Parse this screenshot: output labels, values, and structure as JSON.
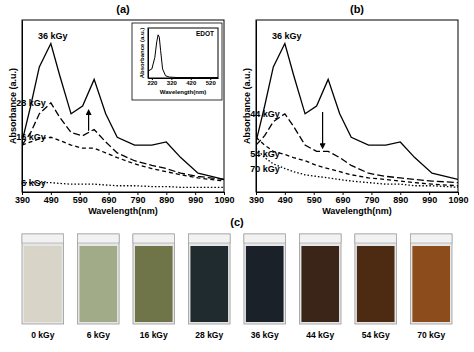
{
  "chart_data": [
    {
      "type": "line",
      "title": "(a)",
      "x_label": "Wavelength(nm)",
      "y_label": "Absorbance (a.u.)",
      "x": [
        390,
        420,
        450,
        490,
        520,
        560,
        600,
        640,
        680,
        720,
        780,
        840,
        890,
        940,
        1000,
        1090
      ],
      "xlim": [
        390,
        1090
      ],
      "xticks": [
        390,
        490,
        590,
        690,
        790,
        890,
        990,
        1090
      ],
      "ylim": [
        0,
        1.1
      ],
      "tick_labels": "x",
      "series": [
        {
          "name": "36 kGy",
          "color": "#000000",
          "line_style": "solid",
          "values": [
            0.32,
            0.55,
            0.8,
            0.95,
            0.75,
            0.5,
            0.55,
            0.72,
            0.5,
            0.35,
            0.3,
            0.3,
            0.32,
            0.22,
            0.12,
            0.08
          ]
        },
        {
          "name": "28 kGy",
          "color": "#000000",
          "line_style": "longdash",
          "values": [
            0.3,
            0.38,
            0.5,
            0.57,
            0.48,
            0.38,
            0.36,
            0.4,
            0.32,
            0.25,
            0.2,
            0.17,
            0.15,
            0.12,
            0.1,
            0.08
          ]
        },
        {
          "name": "16 kGy",
          "color": "#000000",
          "line_style": "dashed",
          "values": [
            0.3,
            0.32,
            0.34,
            0.35,
            0.33,
            0.3,
            0.28,
            0.28,
            0.25,
            0.22,
            0.18,
            0.15,
            0.13,
            0.11,
            0.09,
            0.07
          ]
        },
        {
          "name": "6 kGy",
          "color": "#000000",
          "line_style": "dotted",
          "values": [
            0.06,
            0.06,
            0.06,
            0.06,
            0.055,
            0.05,
            0.05,
            0.05,
            0.045,
            0.04,
            0.04,
            0.035,
            0.035,
            0.03,
            0.03,
            0.03
          ]
        }
      ]
    },
    {
      "type": "line",
      "title": "EDOT",
      "x_label": "Wavelength(nm)",
      "y_label": "Absorbance (a.u.)",
      "x": [
        200,
        220,
        235,
        245,
        252,
        258,
        265,
        275,
        290,
        310,
        350,
        450,
        560
      ],
      "xlim": [
        200,
        560
      ],
      "xticks": [
        220,
        320,
        420,
        520
      ],
      "ylim": [
        0,
        1.1
      ],
      "tick_labels": "x",
      "series": [
        {
          "color": "#000000",
          "line_style": "solid",
          "values": [
            0.15,
            0.2,
            0.45,
            0.8,
            0.95,
            0.9,
            0.6,
            0.2,
            0.05,
            0.02,
            0.01,
            0.01,
            0.01
          ]
        }
      ]
    },
    {
      "type": "line",
      "title": "(b)",
      "x_label": "Wavelength(nm)",
      "y_label": "Absorbance (a.u.)",
      "x": [
        390,
        420,
        450,
        490,
        520,
        560,
        600,
        640,
        680,
        720,
        780,
        840,
        890,
        940,
        1000,
        1090
      ],
      "xlim": [
        390,
        1090
      ],
      "xticks": [
        390,
        490,
        590,
        690,
        790,
        890,
        990,
        1090
      ],
      "ylim": [
        0,
        1.1
      ],
      "tick_labels": "x",
      "series": [
        {
          "name": "36 kGy",
          "color": "#000000",
          "line_style": "solid",
          "values": [
            0.32,
            0.55,
            0.8,
            0.95,
            0.75,
            0.5,
            0.55,
            0.72,
            0.5,
            0.35,
            0.3,
            0.3,
            0.32,
            0.22,
            0.12,
            0.08
          ]
        },
        {
          "name": "44 kGy",
          "color": "#000000",
          "line_style": "longdash",
          "values": [
            0.3,
            0.36,
            0.45,
            0.5,
            0.42,
            0.3,
            0.26,
            0.26,
            0.22,
            0.17,
            0.12,
            0.1,
            0.09,
            0.08,
            0.07,
            0.06
          ]
        },
        {
          "name": "54 kGy",
          "color": "#000000",
          "line_style": "dashed",
          "values": [
            0.35,
            0.3,
            0.26,
            0.24,
            0.22,
            0.2,
            0.17,
            0.15,
            0.13,
            0.11,
            0.09,
            0.08,
            0.07,
            0.06,
            0.05,
            0.04
          ]
        },
        {
          "name": "70 kGy",
          "color": "#000000",
          "line_style": "dotted",
          "values": [
            0.28,
            0.22,
            0.18,
            0.15,
            0.13,
            0.11,
            0.1,
            0.09,
            0.08,
            0.07,
            0.06,
            0.05,
            0.05,
            0.04,
            0.04,
            0.03
          ]
        }
      ]
    },
    {
      "type": "swatches",
      "title": "(c)",
      "categories": [
        "0 kGy",
        "6 kGy",
        "16 kGy",
        "28 kGy",
        "36 kGy",
        "44 kGy",
        "54 kGy",
        "70 kGy"
      ],
      "colors": [
        "#d9d4c8",
        "#a2ab88",
        "#6f7548",
        "#1f2b2e",
        "#1b2129",
        "#3b2519",
        "#4d2b13",
        "#8c4c1c"
      ]
    }
  ]
}
